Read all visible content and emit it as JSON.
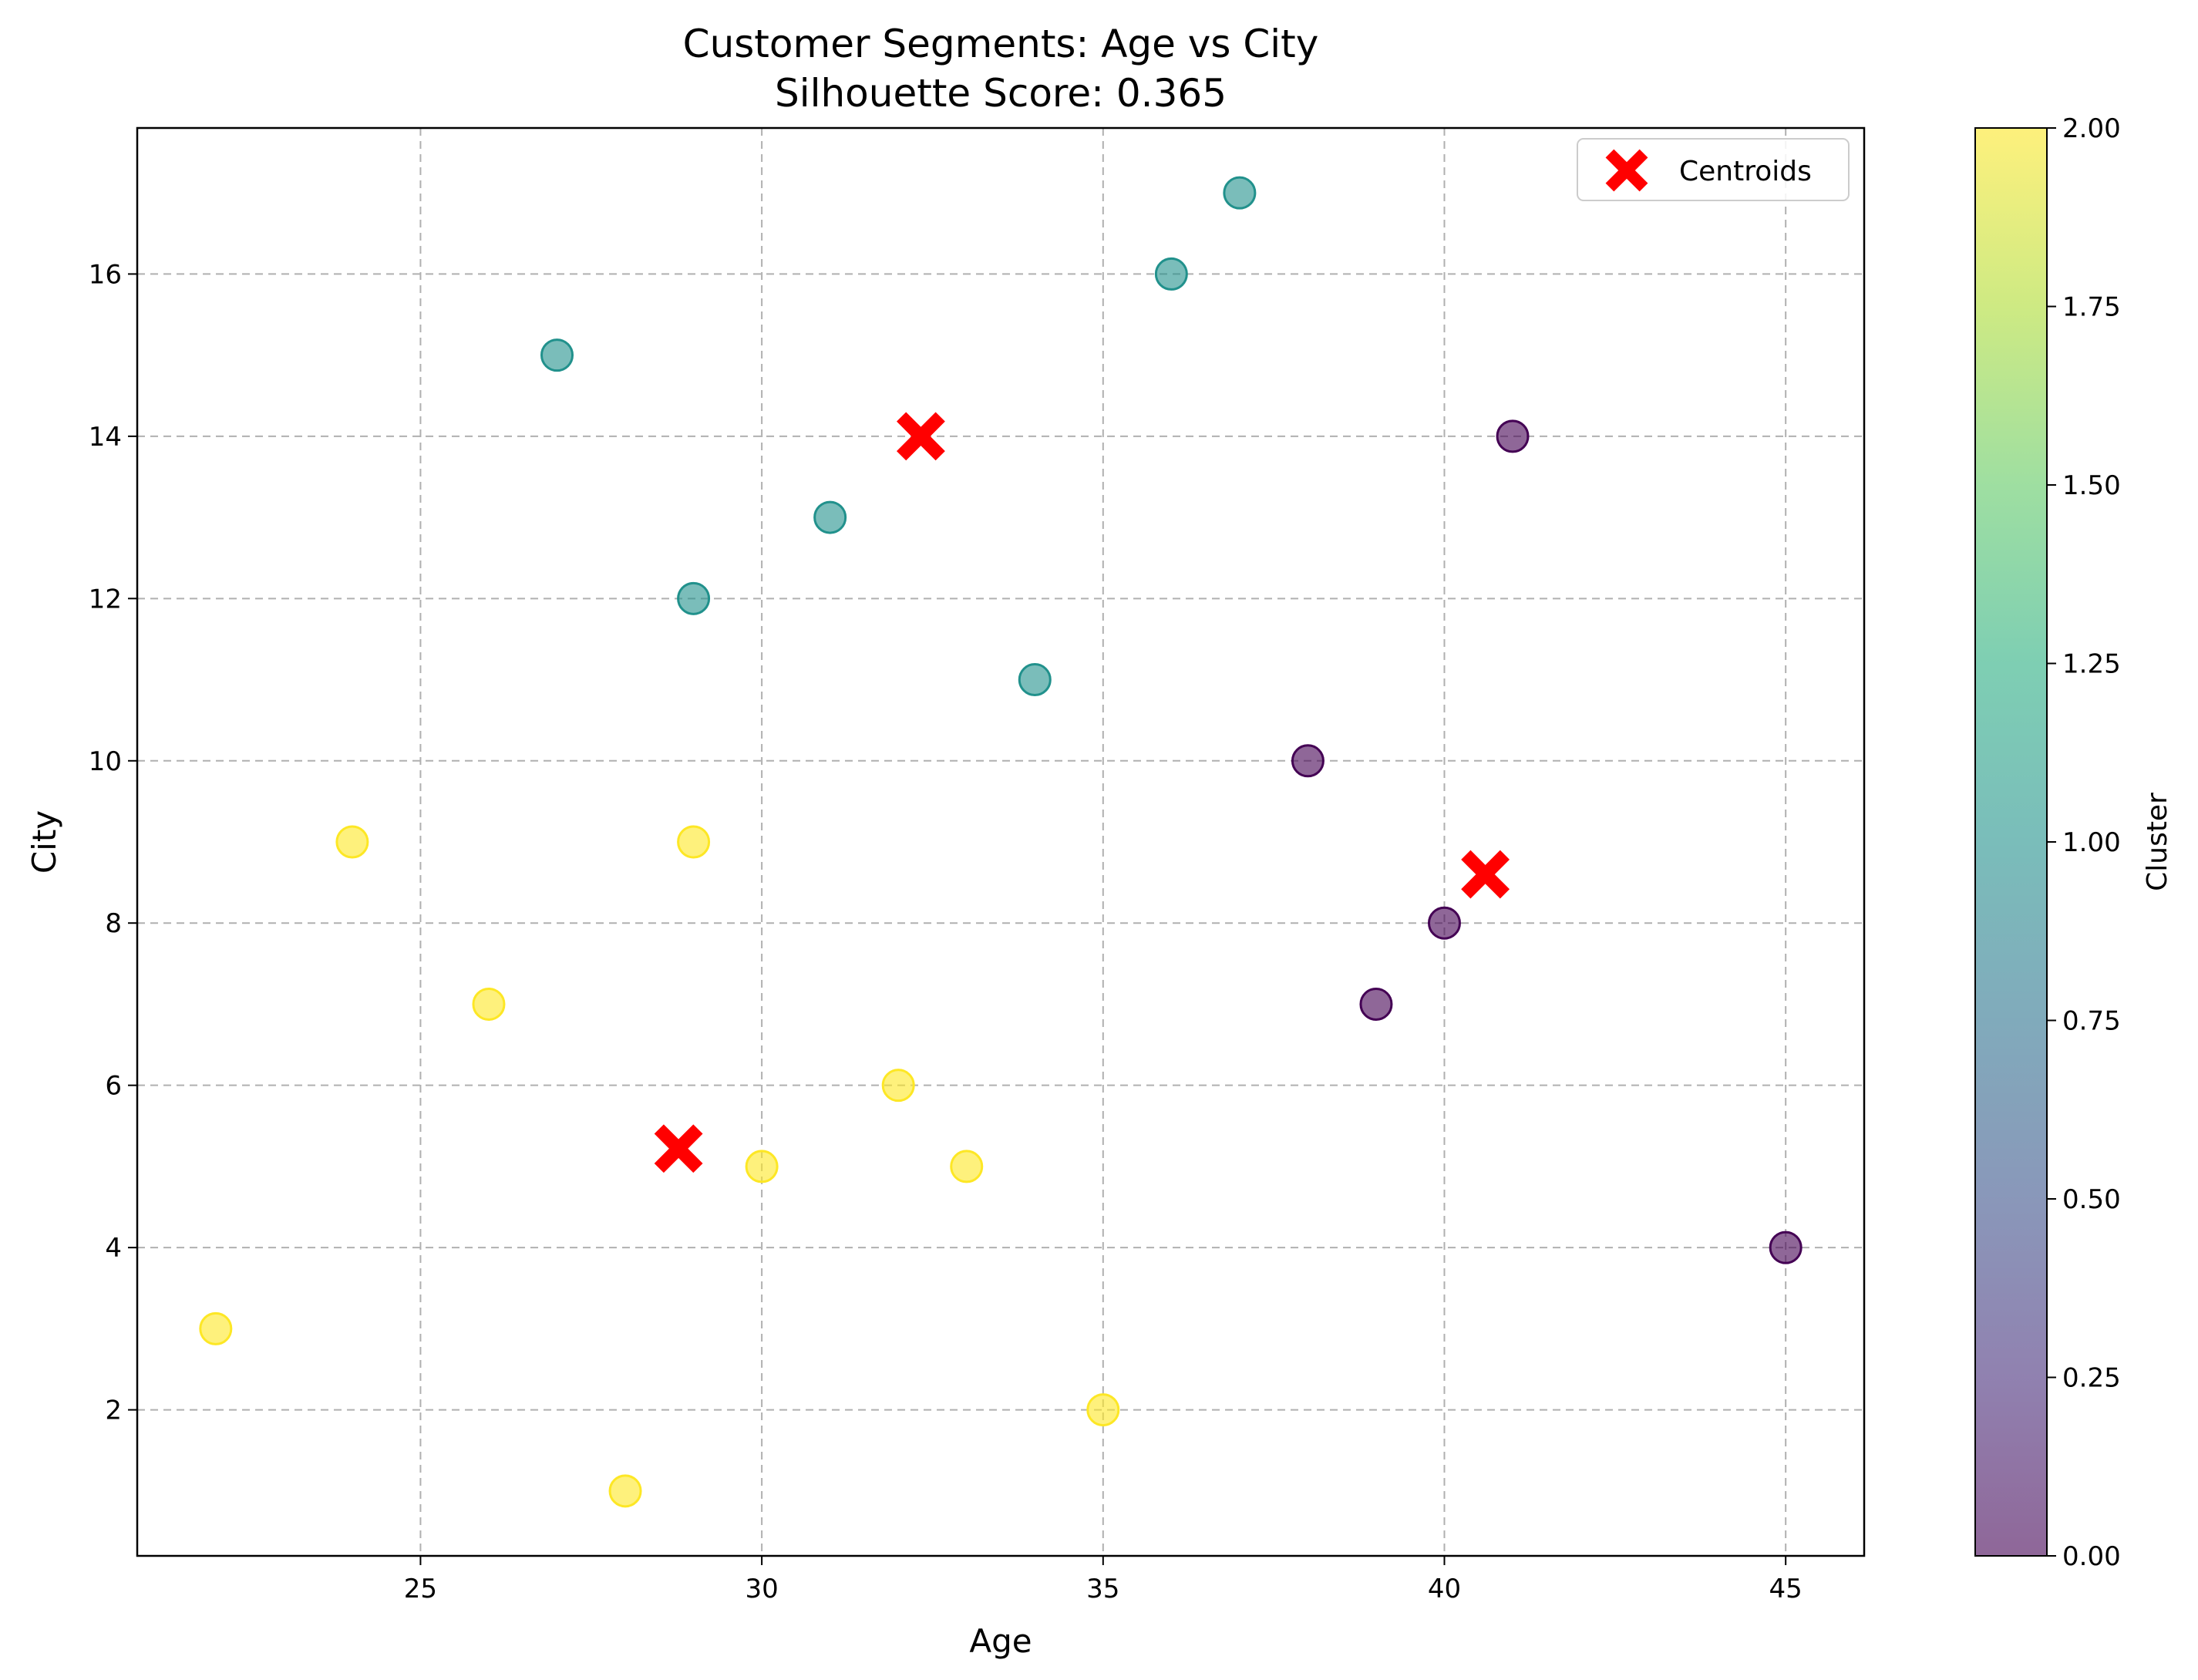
{
  "chart_data": {
    "type": "scatter",
    "title": "Customer Segments: Age vs City",
    "subtitle": "Silhouette Score: 0.365",
    "xlabel": "Age",
    "ylabel": "City",
    "xlim": [
      20.85,
      46.15
    ],
    "ylim": [
      0.2,
      17.8
    ],
    "xticks": [
      25,
      30,
      35,
      40,
      45
    ],
    "yticks": [
      2,
      4,
      6,
      8,
      10,
      12,
      14,
      16
    ],
    "grid": true,
    "legend": {
      "position": "top-right",
      "entries": [
        "Centroids"
      ]
    },
    "colorbar": {
      "label": "Cluster",
      "range": [
        0,
        2
      ],
      "ticks": [
        "0.00",
        "0.25",
        "0.50",
        "0.75",
        "1.00",
        "1.25",
        "1.50",
        "1.75",
        "2.00"
      ],
      "colormap": "viridis"
    },
    "cluster_colors": {
      "0": "#440154",
      "1": "#21918c",
      "2": "#fde725"
    },
    "points": [
      {
        "x": 27,
        "y": 15,
        "cluster": 1
      },
      {
        "x": 29,
        "y": 12,
        "cluster": 1
      },
      {
        "x": 31,
        "y": 13,
        "cluster": 1
      },
      {
        "x": 34,
        "y": 11,
        "cluster": 1
      },
      {
        "x": 36,
        "y": 16,
        "cluster": 1
      },
      {
        "x": 37,
        "y": 17,
        "cluster": 1
      },
      {
        "x": 41,
        "y": 14,
        "cluster": 0
      },
      {
        "x": 38,
        "y": 10,
        "cluster": 0
      },
      {
        "x": 40,
        "y": 8,
        "cluster": 0
      },
      {
        "x": 39,
        "y": 7,
        "cluster": 0
      },
      {
        "x": 45,
        "y": 4,
        "cluster": 0
      },
      {
        "x": 24,
        "y": 9,
        "cluster": 2
      },
      {
        "x": 29,
        "y": 9,
        "cluster": 2
      },
      {
        "x": 26,
        "y": 7,
        "cluster": 2
      },
      {
        "x": 32,
        "y": 6,
        "cluster": 2
      },
      {
        "x": 30,
        "y": 5,
        "cluster": 2
      },
      {
        "x": 33,
        "y": 5,
        "cluster": 2
      },
      {
        "x": 22,
        "y": 3,
        "cluster": 2
      },
      {
        "x": 35,
        "y": 2,
        "cluster": 2
      },
      {
        "x": 28,
        "y": 1,
        "cluster": 2
      }
    ],
    "centroids": [
      {
        "x": 32.33,
        "y": 14.0
      },
      {
        "x": 40.6,
        "y": 8.6
      },
      {
        "x": 28.78,
        "y": 5.22
      }
    ],
    "centroid_color": "#ff0000",
    "point_alpha": 0.6
  }
}
